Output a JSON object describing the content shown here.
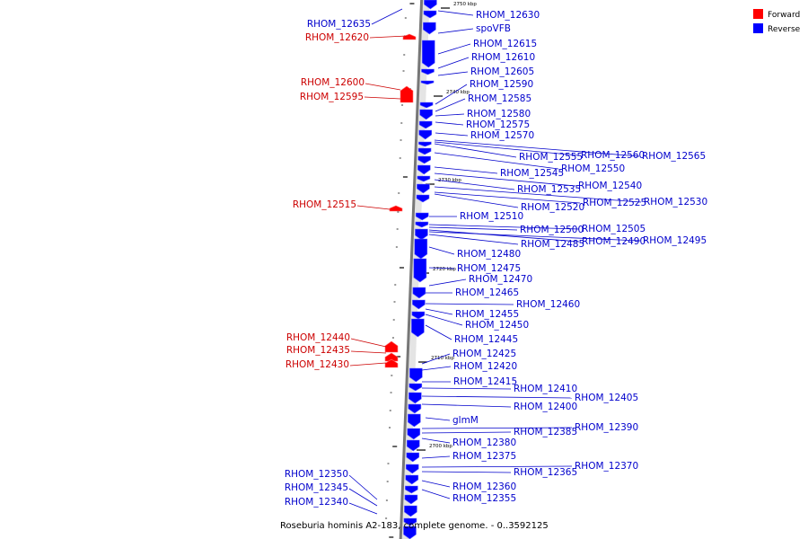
{
  "caption": "Roseburia hominis A2-183, complete genome. - 0..3592125",
  "legend": [
    {
      "label": "Forward",
      "color": "#ff0000"
    },
    {
      "label": "Reverse",
      "color": "#0000ff"
    }
  ],
  "ticks": [
    "2750 kbp",
    "2740 kbp",
    "2730 kbp",
    "2720 kbp",
    "2710 kbp",
    "2700 kbp"
  ],
  "left_labels": [
    "RHOM_12635",
    "RHOM_12620",
    "RHOM_12600",
    "RHOM_12595",
    "RHOM_12515",
    "RHOM_12440",
    "RHOM_12435",
    "RHOM_12430",
    "RHOM_12350",
    "RHOM_12345",
    "RHOM_12340"
  ],
  "right_labels": [
    "RHOM_12630",
    "spoVFB",
    "RHOM_12615",
    "RHOM_12610",
    "RHOM_12605",
    "RHOM_12590",
    "RHOM_12585",
    "RHOM_12580",
    "RHOM_12575",
    "RHOM_12570",
    "RHOM_12555",
    "RHOM_12560",
    "RHOM_12565",
    "RHOM_12550",
    "RHOM_12545",
    "RHOM_12540",
    "RHOM_12535",
    "RHOM_12530",
    "RHOM_12525",
    "RHOM_12520",
    "RHOM_12510",
    "RHOM_12505",
    "RHOM_12500",
    "RHOM_12490",
    "RHOM_12495",
    "RHOM_12485",
    "RHOM_12480",
    "RHOM_12475",
    "RHOM_12470",
    "RHOM_12465",
    "RHOM_12460",
    "RHOM_12455",
    "RHOM_12450",
    "RHOM_12445",
    "RHOM_12425",
    "RHOM_12420",
    "RHOM_12415",
    "RHOM_12410",
    "RHOM_12405",
    "RHOM_12400",
    "glmM",
    "RHOM_12390",
    "RHOM_12385",
    "RHOM_12380",
    "RHOM_12375",
    "RHOM_12370",
    "RHOM_12365",
    "RHOM_12360",
    "RHOM_12355"
  ],
  "colors": {
    "forward": "#ff0000",
    "reverse": "#0000ff",
    "forward_label": "#cc0000",
    "reverse_label": "#0000cc"
  }
}
